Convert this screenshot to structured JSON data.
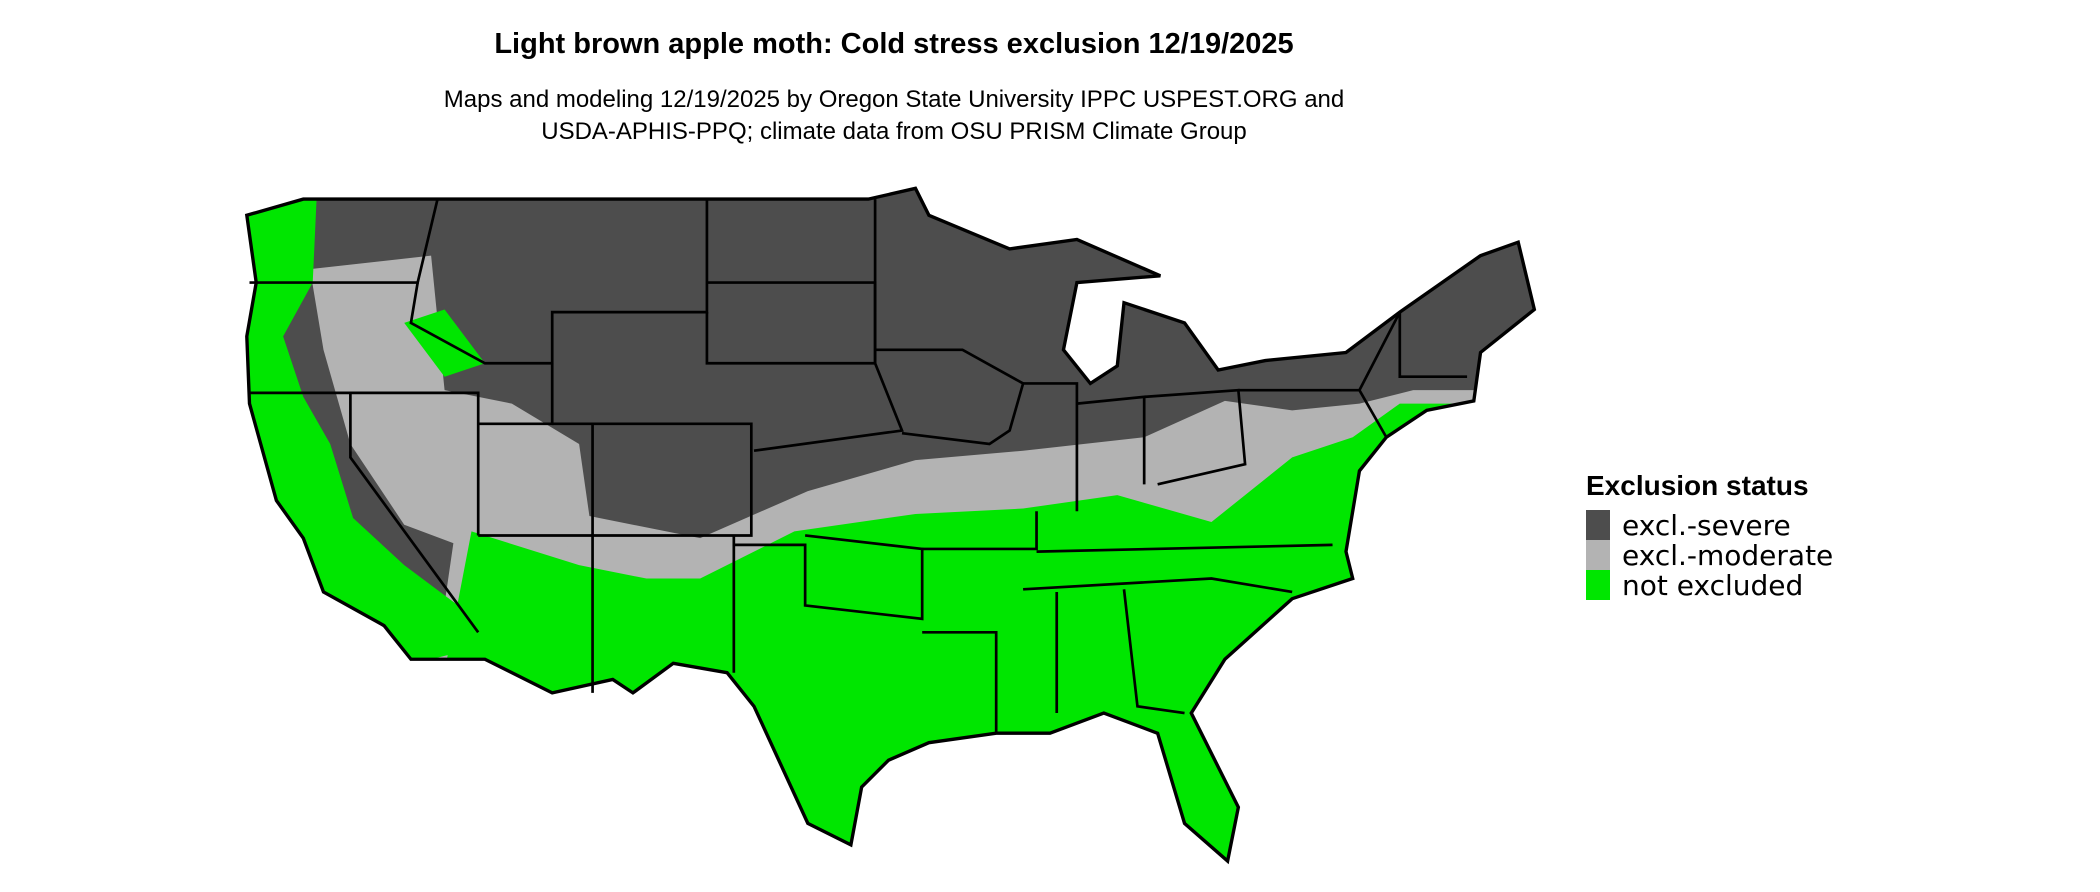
{
  "title": "Light brown apple moth: Cold stress exclusion 12/19/2025",
  "subtitle_lines": [
    "Maps and modeling 12/19/2025 by Oregon State University IPPC USPEST.ORG and",
    "USDA-APHIS-PPQ; climate data from OSU PRISM Climate Group"
  ],
  "legend": {
    "title": "Exclusion status",
    "items": [
      {
        "label": "excl.-severe",
        "color": "#4d4d4d"
      },
      {
        "label": "excl.-moderate",
        "color": "#b3b3b3"
      },
      {
        "label": "not excluded",
        "color": "#00e600"
      }
    ]
  }
}
